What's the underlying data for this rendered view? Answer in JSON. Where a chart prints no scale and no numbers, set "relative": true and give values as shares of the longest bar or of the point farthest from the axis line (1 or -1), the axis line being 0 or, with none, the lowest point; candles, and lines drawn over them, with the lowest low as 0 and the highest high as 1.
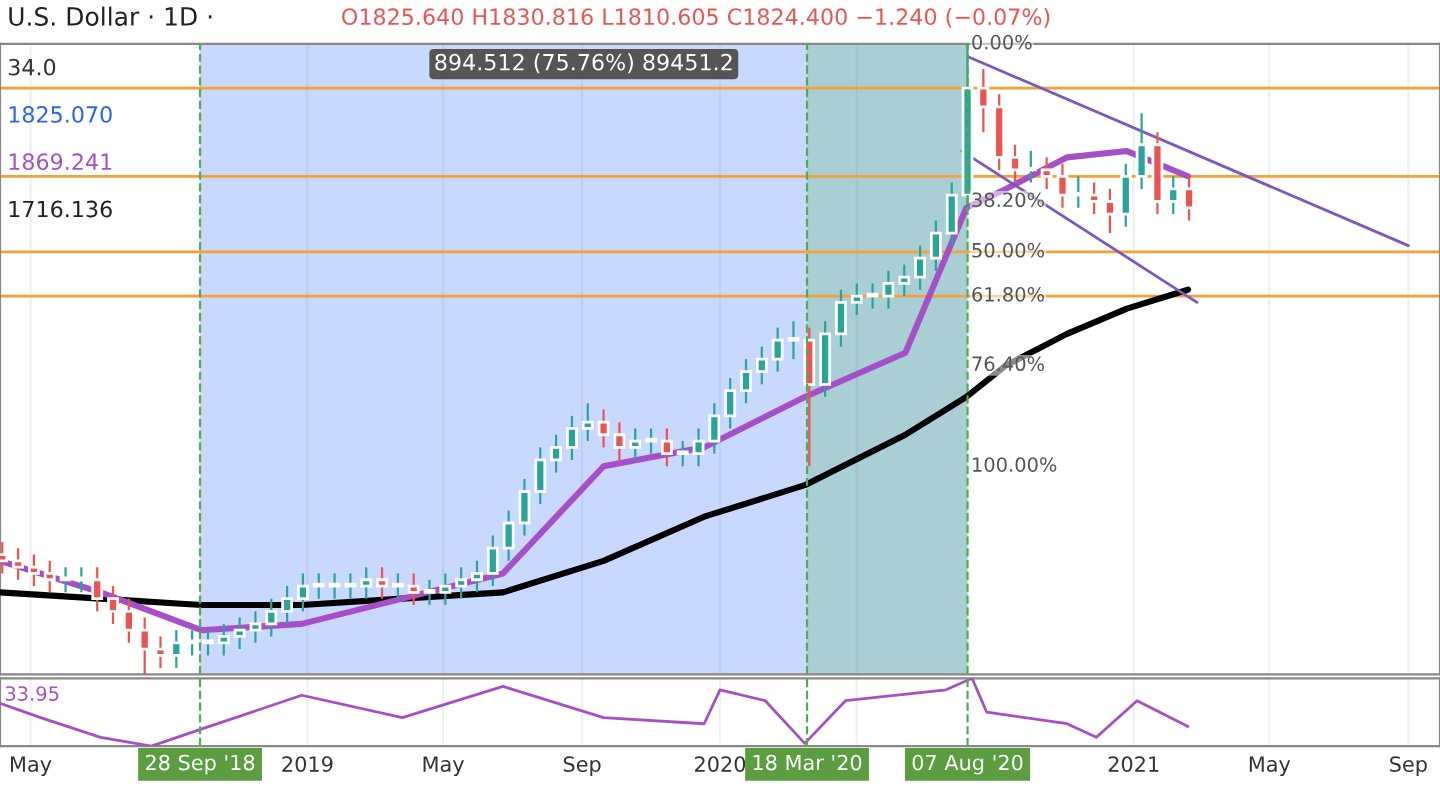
{
  "chart_data": [
    {
      "type": "candlestick",
      "title": "U.S. Dollar · 1D ·",
      "relative": true,
      "grid": "x",
      "tick_labels": false,
      "legend": false,
      "annotations": [
        "O1825.640 H1830.816 L1810.605 C1824.400 −1.240 (−0.07%)",
        "34.0",
        "1825.070",
        "1869.241",
        "1716.136",
        {
          "text": "0.00%",
          "x": "2020-08-07",
          "y": 1.0
        },
        {
          "text": "38.20%",
          "x": "2020-08-07",
          "y": 0.75
        },
        {
          "text": "50.00%",
          "x": "2020-08-07",
          "y": 0.67
        },
        {
          "text": "61.80%",
          "x": "2020-08-07",
          "y": 0.6
        },
        {
          "text": "76.40%",
          "x": "2020-08-07",
          "y": 0.49
        },
        {
          "text": "100.00%",
          "x": "2020-08-07",
          "y": 0.33
        }
      ],
      "x": [
        "2018-04-06",
        "2018-04-20",
        "2018-05-04",
        "2018-05-18",
        "2018-06-01",
        "2018-06-15",
        "2018-06-29",
        "2018-07-13",
        "2018-07-27",
        "2018-08-10",
        "2018-08-24",
        "2018-09-07",
        "2018-09-21",
        "2018-10-05",
        "2018-10-19",
        "2018-11-02",
        "2018-11-16",
        "2018-11-30",
        "2018-12-14",
        "2018-12-28",
        "2019-01-11",
        "2019-01-25",
        "2019-02-08",
        "2019-02-22",
        "2019-03-08",
        "2019-03-22",
        "2019-04-05",
        "2019-04-19",
        "2019-05-03",
        "2019-05-17",
        "2019-05-31",
        "2019-06-14",
        "2019-06-28",
        "2019-07-12",
        "2019-07-26",
        "2019-08-09",
        "2019-08-23",
        "2019-09-06",
        "2019-09-20",
        "2019-10-04",
        "2019-10-18",
        "2019-11-01",
        "2019-11-15",
        "2019-11-29",
        "2019-12-13",
        "2019-12-27",
        "2020-01-10",
        "2020-01-24",
        "2020-02-07",
        "2020-02-21",
        "2020-03-06",
        "2020-03-20",
        "2020-04-03",
        "2020-04-17",
        "2020-05-01",
        "2020-05-15",
        "2020-05-29",
        "2020-06-12",
        "2020-06-26",
        "2020-07-10",
        "2020-07-24",
        "2020-08-07",
        "2020-08-21",
        "2020-09-04",
        "2020-09-18",
        "2020-10-02",
        "2020-10-16",
        "2020-10-30",
        "2020-11-13",
        "2020-11-27",
        "2020-12-11",
        "2020-12-25",
        "2021-01-08",
        "2021-01-22",
        "2021-02-05",
        "2021-02-19"
      ],
      "ohlc": [
        [
          0.19,
          0.21,
          0.16,
          0.18
        ],
        [
          0.18,
          0.2,
          0.15,
          0.17
        ],
        [
          0.17,
          0.19,
          0.14,
          0.16
        ],
        [
          0.16,
          0.18,
          0.13,
          0.15
        ],
        [
          0.15,
          0.17,
          0.13,
          0.15
        ],
        [
          0.15,
          0.17,
          0.13,
          0.15
        ],
        [
          0.15,
          0.17,
          0.1,
          0.12
        ],
        [
          0.12,
          0.14,
          0.08,
          0.1
        ],
        [
          0.1,
          0.12,
          0.05,
          0.07
        ],
        [
          0.07,
          0.09,
          0,
          0.04
        ],
        [
          0.04,
          0.06,
          0.01,
          0.03
        ],
        [
          0.03,
          0.07,
          0.01,
          0.05
        ],
        [
          0.05,
          0.07,
          0.03,
          0.05
        ],
        [
          0.05,
          0.07,
          0.03,
          0.05
        ],
        [
          0.05,
          0.08,
          0.03,
          0.06
        ],
        [
          0.06,
          0.09,
          0.04,
          0.07
        ],
        [
          0.07,
          0.1,
          0.05,
          0.08
        ],
        [
          0.08,
          0.12,
          0.06,
          0.1
        ],
        [
          0.1,
          0.14,
          0.08,
          0.12
        ],
        [
          0.12,
          0.16,
          0.1,
          0.14
        ],
        [
          0.14,
          0.16,
          0.12,
          0.14
        ],
        [
          0.14,
          0.16,
          0.12,
          0.14
        ],
        [
          0.14,
          0.16,
          0.12,
          0.14
        ],
        [
          0.14,
          0.17,
          0.12,
          0.15
        ],
        [
          0.15,
          0.17,
          0.12,
          0.14
        ],
        [
          0.14,
          0.16,
          0.12,
          0.14
        ],
        [
          0.14,
          0.16,
          0.11,
          0.13
        ],
        [
          0.13,
          0.15,
          0.11,
          0.13
        ],
        [
          0.13,
          0.16,
          0.11,
          0.14
        ],
        [
          0.14,
          0.17,
          0.12,
          0.15
        ],
        [
          0.15,
          0.18,
          0.13,
          0.16
        ],
        [
          0.16,
          0.22,
          0.14,
          0.2
        ],
        [
          0.2,
          0.26,
          0.18,
          0.24
        ],
        [
          0.24,
          0.31,
          0.22,
          0.29
        ],
        [
          0.29,
          0.36,
          0.27,
          0.34
        ],
        [
          0.34,
          0.38,
          0.32,
          0.36
        ],
        [
          0.36,
          0.41,
          0.34,
          0.39
        ],
        [
          0.39,
          0.43,
          0.37,
          0.4
        ],
        [
          0.4,
          0.42,
          0.36,
          0.38
        ],
        [
          0.38,
          0.4,
          0.34,
          0.36
        ],
        [
          0.36,
          0.39,
          0.34,
          0.37
        ],
        [
          0.37,
          0.39,
          0.35,
          0.37
        ],
        [
          0.37,
          0.39,
          0.33,
          0.35
        ],
        [
          0.35,
          0.37,
          0.33,
          0.35
        ],
        [
          0.35,
          0.39,
          0.33,
          0.37
        ],
        [
          0.37,
          0.43,
          0.35,
          0.41
        ],
        [
          0.41,
          0.47,
          0.39,
          0.45
        ],
        [
          0.45,
          0.5,
          0.43,
          0.48
        ],
        [
          0.48,
          0.52,
          0.46,
          0.5
        ],
        [
          0.5,
          0.55,
          0.48,
          0.53
        ],
        [
          0.53,
          0.56,
          0.5,
          0.53
        ],
        [
          0.53,
          0.55,
          0.33,
          0.46
        ],
        [
          0.46,
          0.56,
          0.44,
          0.54
        ],
        [
          0.54,
          0.61,
          0.52,
          0.59
        ],
        [
          0.59,
          0.62,
          0.57,
          0.6
        ],
        [
          0.6,
          0.62,
          0.58,
          0.6
        ],
        [
          0.6,
          0.64,
          0.58,
          0.62
        ],
        [
          0.62,
          0.65,
          0.6,
          0.63
        ],
        [
          0.63,
          0.68,
          0.61,
          0.66
        ],
        [
          0.66,
          0.72,
          0.64,
          0.7
        ],
        [
          0.7,
          0.78,
          0.68,
          0.76
        ],
        [
          0.76,
          1,
          0.74,
          0.93
        ],
        [
          0.93,
          0.96,
          0.86,
          0.9
        ],
        [
          0.9,
          0.92,
          0.8,
          0.82
        ],
        [
          0.82,
          0.84,
          0.78,
          0.8
        ],
        [
          0.8,
          0.83,
          0.78,
          0.8
        ],
        [
          0.8,
          0.82,
          0.77,
          0.79
        ],
        [
          0.79,
          0.81,
          0.74,
          0.76
        ],
        [
          0.76,
          0.79,
          0.74,
          0.76
        ],
        [
          0.76,
          0.78,
          0.73,
          0.75
        ],
        [
          0.75,
          0.77,
          0.7,
          0.73
        ],
        [
          0.73,
          0.81,
          0.71,
          0.79
        ],
        [
          0.79,
          0.89,
          0.77,
          0.84
        ],
        [
          0.84,
          0.86,
          0.73,
          0.75
        ],
        [
          0.75,
          0.79,
          0.73,
          0.77
        ],
        [
          0.77,
          0.79,
          0.72,
          0.74
        ]
      ],
      "series": [
        {
          "type": "line",
          "color": "#000000",
          "x": [
            "2018-04-04",
            "2018-07-02",
            "2018-09-29",
            "2018-12-27",
            "2019-03-26",
            "2019-06-23",
            "2019-09-20",
            "2019-12-18",
            "2020-03-16",
            "2020-06-13",
            "2020-08-06",
            "2020-09-10",
            "2020-11-03",
            "2020-12-26",
            "2021-02-18"
          ],
          "values": [
            0.13,
            0.12,
            0.11,
            0.11,
            0.12,
            0.13,
            0.18,
            0.25,
            0.3,
            0.38,
            0.44,
            0.49,
            0.54,
            0.58,
            0.61
          ]
        },
        {
          "type": "line",
          "color": "#a64fc8",
          "x": [
            "2018-04-04",
            "2018-07-02",
            "2018-09-29",
            "2018-12-27",
            "2019-03-26",
            "2019-06-23",
            "2019-09-20",
            "2019-12-18",
            "2020-03-16",
            "2020-06-13",
            "2020-08-06",
            "2020-09-10",
            "2020-11-03",
            "2020-12-26",
            "2021-02-18"
          ],
          "values": [
            0.18,
            0.13,
            0.07,
            0.08,
            0.12,
            0.16,
            0.33,
            0.36,
            0.44,
            0.51,
            0.74,
            0.77,
            0.82,
            0.83,
            0.79
          ]
        },
        {
          "type": "line",
          "color": "#7e57c2",
          "x": [
            "2020-08-07",
            "2021-09-01"
          ],
          "values": [
            0.98,
            0.68
          ]
        },
        {
          "type": "line",
          "color": "#7e57c2",
          "x": [
            "2020-08-02",
            "2021-02-26"
          ],
          "values": [
            0.83,
            0.59
          ]
        }
      ],
      "ref_lines": [
        {
          "axis": "y",
          "value": 0.93,
          "color": "#f7a035"
        },
        {
          "axis": "y",
          "value": 0.79,
          "color": "#f7a035"
        },
        {
          "axis": "y",
          "value": 0.67,
          "color": "#f7a035"
        },
        {
          "axis": "y",
          "value": 0.6,
          "color": "#f7a035"
        },
        {
          "axis": "x",
          "value": "2018-09-28",
          "color": "#4caf50",
          "line_style": "dashed"
        },
        {
          "axis": "x",
          "value": "2020-03-18",
          "color": "#4caf50",
          "line_style": "dashed"
        },
        {
          "axis": "x",
          "value": "2020-08-07",
          "color": "#4caf50",
          "line_style": "dashed"
        }
      ],
      "bands": [
        {
          "axis": "x",
          "from": "2018-09-28",
          "to": "2020-08-07",
          "label": "894.512 (75.76%) 89451.2",
          "color": "#2962ff"
        },
        {
          "axis": "x",
          "from": "2020-03-18",
          "to": "2020-08-07",
          "color": "#4caf50"
        }
      ],
      "xlim": [
        "2018-04-04",
        "2021-09-29"
      ]
    },
    {
      "type": "line",
      "relative": true,
      "grid": "x",
      "tick_labels": "x",
      "annotations": [
        "33.95"
      ],
      "series": [
        {
          "color": "#a64fc8",
          "x": [
            "2018-04-04",
            "2018-05-10",
            "2018-07-02",
            "2018-08-16",
            "2018-09-29",
            "2018-12-27",
            "2019-03-26",
            "2019-06-23",
            "2019-09-20",
            "2019-12-18",
            "2020-01-01",
            "2020-02-10",
            "2020-03-16",
            "2020-04-21",
            "2020-07-19",
            "2020-08-11",
            "2020-08-24",
            "2020-11-03",
            "2020-11-29",
            "2021-01-04",
            "2021-02-18"
          ],
          "values": [
            0.63,
            0.42,
            0.13,
            0,
            0.25,
            0.75,
            0.42,
            0.88,
            0.42,
            0.33,
            0.83,
            0.67,
            0.04,
            0.67,
            0.83,
            1,
            0.5,
            0.33,
            0.13,
            0.67,
            0.29
          ]
        }
      ],
      "ref_lines": [
        {
          "axis": "x",
          "value": "2018-09-28",
          "label": "28 Sep '18",
          "color": "#4caf50",
          "line_style": "dashed"
        },
        {
          "axis": "x",
          "value": "2020-03-18",
          "label": "18 Mar '20",
          "color": "#4caf50",
          "line_style": "dashed"
        },
        {
          "axis": "x",
          "value": "2020-08-07",
          "label": "07 Aug '20",
          "color": "#4caf50",
          "line_style": "dashed"
        }
      ],
      "xlim": [
        "2018-04-04",
        "2021-09-29"
      ],
      "xticks": [
        {
          "value": "2018-05-01",
          "label": "May"
        },
        {
          "value": "2019-01-01",
          "label": "2019"
        },
        {
          "value": "2019-05-01",
          "label": "May"
        },
        {
          "value": "2019-09-01",
          "label": "Sep"
        },
        {
          "value": "2020-01-01",
          "label": "2020"
        },
        {
          "value": "2020-05-01",
          "label": null
        },
        {
          "value": "2021-01-01",
          "label": "2021"
        },
        {
          "value": "2021-05-01",
          "label": "May"
        },
        {
          "value": "2021-09-01",
          "label": "Sep"
        }
      ]
    }
  ]
}
